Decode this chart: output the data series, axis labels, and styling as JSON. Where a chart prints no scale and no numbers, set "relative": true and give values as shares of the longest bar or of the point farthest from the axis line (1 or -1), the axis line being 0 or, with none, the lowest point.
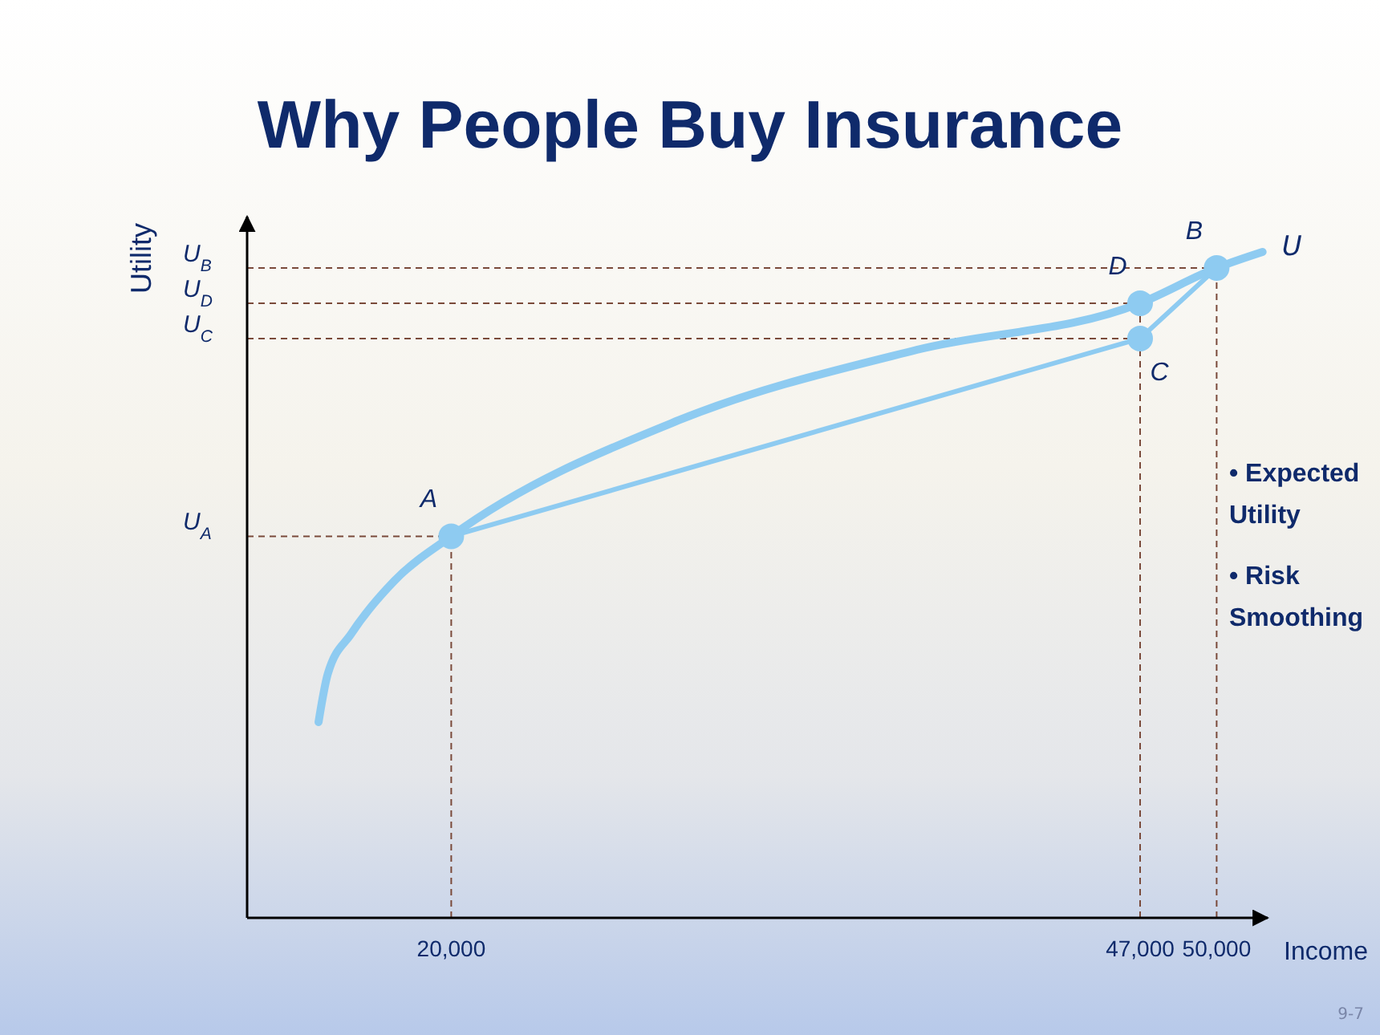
{
  "chart_data": {
    "type": "line",
    "title": "Why People Buy Insurance",
    "xlabel": "Income",
    "ylabel": "Utility",
    "relative": true,
    "xlim": [
      12000,
      52000
    ],
    "xticks": [
      {
        "value": 20000,
        "label": "20,000"
      },
      {
        "value": 47000,
        "label": "47,000"
      },
      {
        "value": 50000,
        "label": "50,000"
      }
    ],
    "series": [
      {
        "name": "U",
        "color": "#8ecbf1",
        "x": [
          14800,
          15160,
          16090,
          17770,
          20000,
          28900,
          38250,
          47000,
          50000,
          51800
        ],
        "values": [
          0.294,
          0.366,
          0.427,
          0.506,
          0.573,
          0.747,
          0.853,
          0.923,
          0.976,
          1
        ]
      },
      {
        "color": "#8ecbf1",
        "x": [
          20000,
          47000,
          50000
        ],
        "values": [
          0.573,
          0.87,
          0.976
        ]
      },
      {
        "type": "scatter",
        "color": "#8ecbf1",
        "x": [
          20000,
          50000,
          47000,
          47000
        ],
        "values": [
          0.573,
          0.976,
          0.87,
          0.923
        ]
      }
    ],
    "ref_lines": [
      {
        "axis": "y",
        "value": 0.976,
        "label": "U$_{B}$",
        "color": "#7a4a3a",
        "line_style": "dashed"
      },
      {
        "axis": "y",
        "value": 0.923,
        "label": "U$_{D}$",
        "color": "#7a4a3a",
        "line_style": "dashed"
      },
      {
        "axis": "y",
        "value": 0.87,
        "label": "U$_{C}$",
        "color": "#7a4a3a",
        "line_style": "dashed"
      },
      {
        "axis": "y",
        "value": 0.573,
        "label": "U$_{A}$",
        "color": "#7a4a3a",
        "line_style": "dashed"
      },
      {
        "axis": "x",
        "value": 20000,
        "color": "#7a4a3a",
        "line_style": "dashed"
      },
      {
        "axis": "x",
        "value": 47000,
        "color": "#7a4a3a",
        "line_style": "dashed"
      },
      {
        "axis": "x",
        "value": 50000,
        "color": "#7a4a3a",
        "line_style": "dashed"
      }
    ],
    "annotations": [
      {
        "text": "A",
        "x": 20000,
        "y": 0.573
      },
      {
        "text": "B",
        "x": 50000,
        "y": 0.976
      },
      {
        "text": "C",
        "x": 47000,
        "y": 0.87
      },
      {
        "text": "D",
        "x": 47000,
        "y": 0.923
      },
      "• Expected Utility",
      "• Risk Smoothing",
      "9-7"
    ],
    "grid": false
  }
}
